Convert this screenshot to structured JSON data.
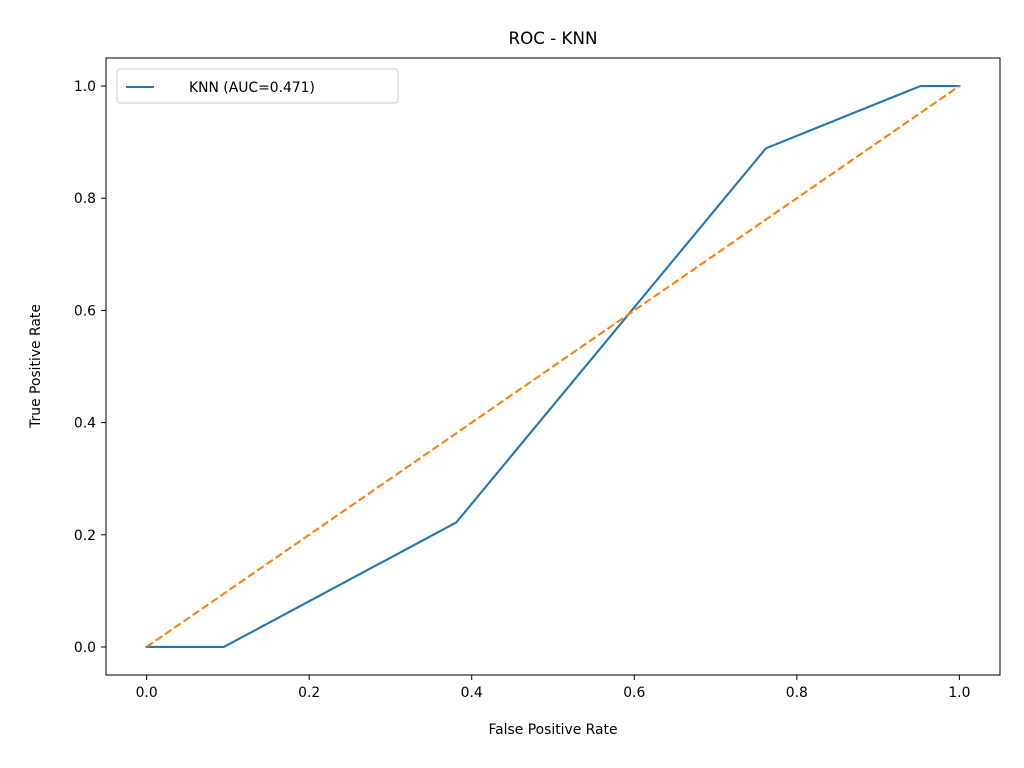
{
  "chart_data": {
    "type": "line",
    "title": "ROC - KNN",
    "xlabel": "False Positive Rate",
    "ylabel": "True Positive Rate",
    "xlim": [
      -0.05,
      1.05
    ],
    "ylim": [
      -0.05,
      1.05
    ],
    "xticks": [
      0.0,
      0.2,
      0.4,
      0.6,
      0.8,
      1.0
    ],
    "yticks": [
      0.0,
      0.2,
      0.4,
      0.6,
      0.8,
      1.0
    ],
    "xtick_labels": [
      "0.0",
      "0.2",
      "0.4",
      "0.6",
      "0.8",
      "1.0"
    ],
    "ytick_labels": [
      "0.0",
      "0.2",
      "0.4",
      "0.6",
      "0.8",
      "1.0"
    ],
    "grid": false,
    "legend_position": "upper-left",
    "series": [
      {
        "name": "KNN (AUC=0.471)",
        "style": "solid",
        "color": "#1f77b4",
        "x": [
          0.0,
          0.095,
          0.381,
          0.762,
          0.952,
          1.0
        ],
        "y": [
          0.0,
          0.0,
          0.222,
          0.889,
          1.0,
          1.0
        ]
      },
      {
        "name": "",
        "style": "dashed",
        "color": "#ff7f0e",
        "x": [
          0.0,
          1.0
        ],
        "y": [
          0.0,
          1.0
        ]
      }
    ]
  }
}
